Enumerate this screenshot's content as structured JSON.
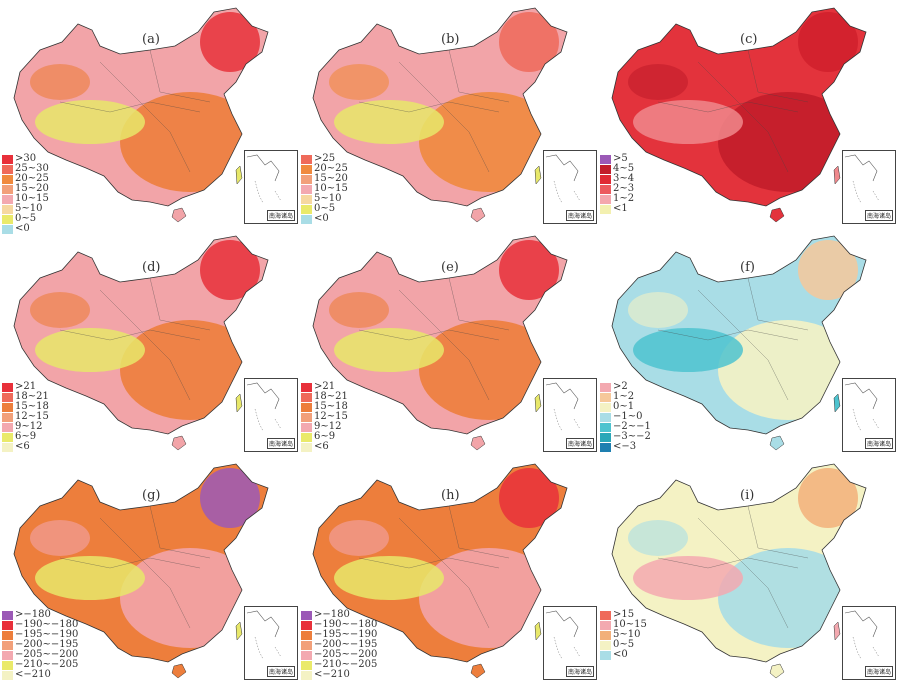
{
  "panels": [
    {
      "label": "(a)",
      "legend": [
        {
          "text": ">30",
          "color": "#e8303a"
        },
        {
          "text": "25~30",
          "color": "#ef6a5a"
        },
        {
          "text": "20~25",
          "color": "#f08a3e"
        },
        {
          "text": "15~20",
          "color": "#f2a07a"
        },
        {
          "text": "10~15",
          "color": "#f3a9b0"
        },
        {
          "text": "5~10",
          "color": "#f6d8a0"
        },
        {
          "text": "0~5",
          "color": "#eaea6a"
        },
        {
          "text": "<0",
          "color": "#a9dde6"
        }
      ],
      "fill": [
        "#f2a4a8",
        "#ed7e3c",
        "#e7e86a",
        "#e8333b"
      ]
    },
    {
      "label": "(b)",
      "legend": [
        {
          "text": ">25",
          "color": "#ef6a5a"
        },
        {
          "text": "20~25",
          "color": "#f08a3e"
        },
        {
          "text": "15~20",
          "color": "#f2a07a"
        },
        {
          "text": "10~15",
          "color": "#f3a9b0"
        },
        {
          "text": "5~10",
          "color": "#f6d8a0"
        },
        {
          "text": "0~5",
          "color": "#eaea6a"
        },
        {
          "text": "<0",
          "color": "#a9dde6"
        }
      ],
      "fill": [
        "#f2a4a8",
        "#f08a3e",
        "#e7e86a",
        "#ef6a5a"
      ]
    },
    {
      "label": "(c)",
      "legend": [
        {
          "text": ">5",
          "color": "#9b59b6"
        },
        {
          "text": "4~5",
          "color": "#c21d2a"
        },
        {
          "text": "3~4",
          "color": "#e02a34"
        },
        {
          "text": "2~3",
          "color": "#ec5a5e"
        },
        {
          "text": "1~2",
          "color": "#f4a7ad"
        },
        {
          "text": "<1",
          "color": "#f3f0b0"
        }
      ],
      "fill": [
        "#e3333c",
        "#c21d2a",
        "#f0888c",
        "#d0202c"
      ]
    },
    {
      "label": "(d)",
      "legend": [
        {
          "text": ">21",
          "color": "#e8303a"
        },
        {
          "text": "18~21",
          "color": "#ef6a5a"
        },
        {
          "text": "15~18",
          "color": "#ed7e3c"
        },
        {
          "text": "12~15",
          "color": "#f2a07a"
        },
        {
          "text": "9~12",
          "color": "#f3a9b0"
        },
        {
          "text": "6~9",
          "color": "#eaea6a"
        },
        {
          "text": "<6",
          "color": "#f4f2c4"
        }
      ],
      "fill": [
        "#f2a4a8",
        "#ed7e3c",
        "#e8e86a",
        "#e8303a"
      ]
    },
    {
      "label": "(e)",
      "legend": [
        {
          "text": ">21",
          "color": "#e8303a"
        },
        {
          "text": "18~21",
          "color": "#ef6a5a"
        },
        {
          "text": "15~18",
          "color": "#ed7e3c"
        },
        {
          "text": "12~15",
          "color": "#f2a07a"
        },
        {
          "text": "9~12",
          "color": "#f3a9b0"
        },
        {
          "text": "6~9",
          "color": "#eaea6a"
        },
        {
          "text": "<6",
          "color": "#f4f2c4"
        }
      ],
      "fill": [
        "#f2a4a8",
        "#ed7e3c",
        "#e8e86a",
        "#e8303a"
      ]
    },
    {
      "label": "(f)",
      "legend": [
        {
          "text": ">2",
          "color": "#f3a9b0"
        },
        {
          "text": "1~2",
          "color": "#f6c89a"
        },
        {
          "text": "0~1",
          "color": "#f4f2c4"
        },
        {
          "text": "−1~0",
          "color": "#a9dde6"
        },
        {
          "text": "−2~−1",
          "color": "#4dc3cf"
        },
        {
          "text": "−3~−2",
          "color": "#2aa7b8"
        },
        {
          "text": "<−3",
          "color": "#1e7fb0"
        }
      ],
      "fill": [
        "#a9dde6",
        "#f4f2c4",
        "#4dc3cf",
        "#f6c89a"
      ]
    },
    {
      "label": "(g)",
      "legend": [
        {
          "text": ">−180",
          "color": "#9b59b6"
        },
        {
          "text": "−190~−180",
          "color": "#e8303a"
        },
        {
          "text": "−195~−190",
          "color": "#ed7e3c"
        },
        {
          "text": "−200~−195",
          "color": "#f2a07a"
        },
        {
          "text": "−205~−200",
          "color": "#f3a9b0"
        },
        {
          "text": "−210~−205",
          "color": "#eaea6a"
        },
        {
          "text": "<−210",
          "color": "#f4f2c4"
        }
      ],
      "fill": [
        "#ed7e3c",
        "#f2a4a8",
        "#e8e86a",
        "#9b59b6"
      ]
    },
    {
      "label": "(h)",
      "legend": [
        {
          "text": ">−180",
          "color": "#9b59b6"
        },
        {
          "text": "−190~−180",
          "color": "#e8303a"
        },
        {
          "text": "−195~−190",
          "color": "#ed7e3c"
        },
        {
          "text": "−200~−195",
          "color": "#f2a07a"
        },
        {
          "text": "−205~−200",
          "color": "#f3a9b0"
        },
        {
          "text": "−210~−205",
          "color": "#eaea6a"
        },
        {
          "text": "<−210",
          "color": "#f4f2c4"
        }
      ],
      "fill": [
        "#ed7e3c",
        "#f2a4a8",
        "#e8e86a",
        "#e8303a"
      ]
    },
    {
      "label": "(i)",
      "legend": [
        {
          "text": ">15",
          "color": "#ef6a5a"
        },
        {
          "text": "10~15",
          "color": "#f3a9b0"
        },
        {
          "text": "5~10",
          "color": "#f2b07a"
        },
        {
          "text": "0~5",
          "color": "#f4f2c4"
        },
        {
          "text": "<0",
          "color": "#a9dde6"
        }
      ],
      "fill": [
        "#f4f2c4",
        "#a9dde6",
        "#f3a9b0",
        "#f2b07a"
      ]
    }
  ],
  "inset_label": "南海诸岛"
}
